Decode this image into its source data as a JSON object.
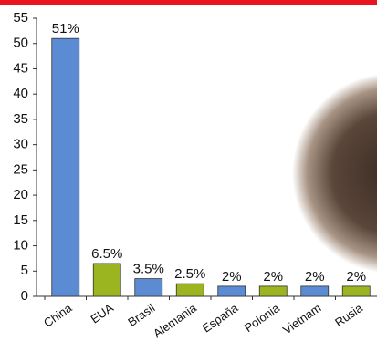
{
  "chart_data": {
    "type": "bar",
    "categories": [
      "China",
      "EUA",
      "Brasil",
      "Alemania",
      "España",
      "Polonia",
      "Vietnam",
      "Rusia"
    ],
    "values": [
      51,
      6.5,
      3.5,
      2.5,
      2,
      2,
      2,
      2
    ],
    "value_labels": [
      "51%",
      "6.5%",
      "3.5%",
      "2.5%",
      "2%",
      "2%",
      "2%",
      "2%"
    ],
    "colors": [
      "#5b8bd2",
      "#9bb520",
      "#5b8bd2",
      "#9bb520",
      "#5b8bd2",
      "#9bb520",
      "#5b8bd2",
      "#9bb520"
    ],
    "ylim": [
      0,
      55
    ],
    "yticks": [
      0,
      5,
      10,
      15,
      20,
      25,
      30,
      35,
      40,
      45,
      50,
      55
    ],
    "grid": false
  }
}
